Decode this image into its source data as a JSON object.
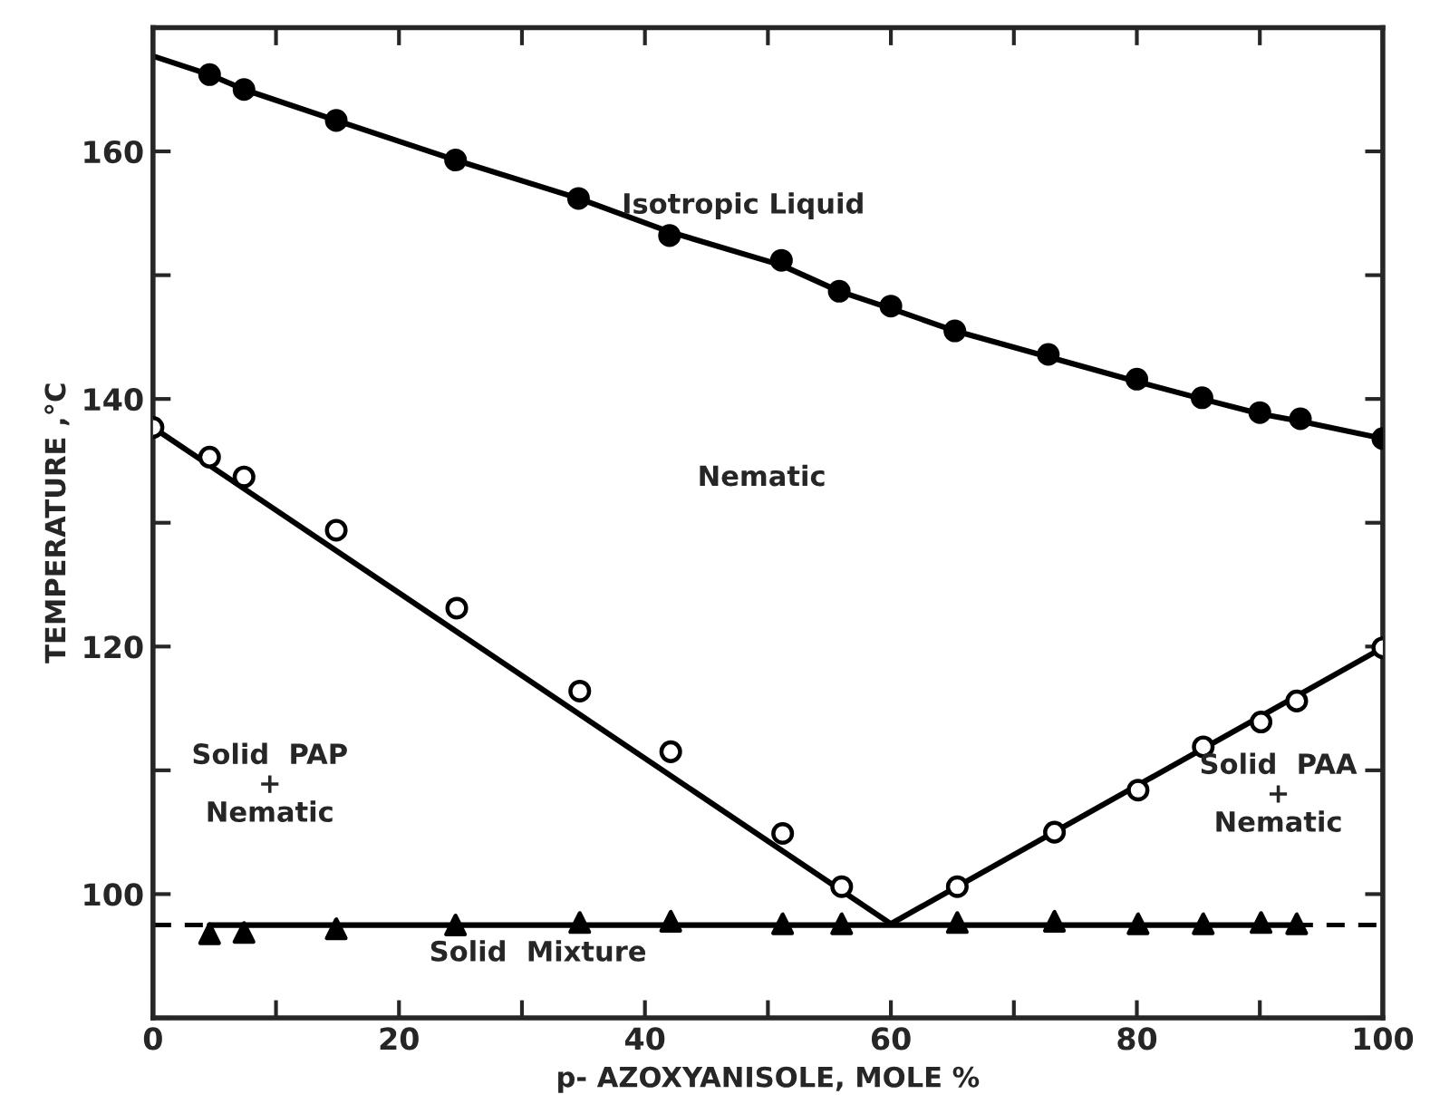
{
  "chart_data": {
    "type": "scatter",
    "xlabel": "p- AZOXYANISOLE, MOLE %",
    "ylabel": "TEMPERATURE ,°C",
    "xlim": [
      0,
      100
    ],
    "ylim": [
      90,
      170
    ],
    "xticks": [
      0,
      {
        "value": 10,
        "label": null
      },
      20,
      {
        "value": 30,
        "label": null
      },
      40,
      {
        "value": 50,
        "label": null
      },
      60,
      {
        "value": 70,
        "label": null
      },
      80,
      {
        "value": 90,
        "label": null
      },
      100
    ],
    "yticks": [
      {
        "value": 90,
        "label": null
      },
      100,
      {
        "value": 110,
        "label": null
      },
      120,
      {
        "value": 130,
        "label": null
      },
      140,
      {
        "value": 150,
        "label": null
      },
      160,
      {
        "value": 170,
        "label": null
      }
    ],
    "grid": false,
    "legend": false,
    "series": [
      {
        "type": "line",
        "color": "#000000",
        "marker": "none",
        "line_style": "solid",
        "x": [
          0,
          4.6,
          7.4,
          14.9,
          24.6,
          34.6,
          42,
          51.1,
          55.8,
          60,
          65.2,
          72.8,
          80,
          85.3,
          90,
          93.3,
          100
        ],
        "values": [
          167.7,
          166.2,
          165.0,
          162.5,
          159.3,
          156.2,
          153.5,
          150.8,
          148.7,
          147.3,
          145.5,
          143.4,
          141.4,
          140.0,
          138.8,
          138.2,
          136.8
        ]
      },
      {
        "type": "line",
        "color": "#000000",
        "marker": "none",
        "line_style": "solid",
        "x": [
          0,
          60,
          100
        ],
        "values": [
          137.7,
          97.6,
          119.9
        ]
      },
      {
        "type": "line",
        "color": "#000000",
        "marker": "none",
        "line_style": "solid",
        "x": [
          4.6,
          93.3
        ],
        "values": [
          97.5,
          97.5
        ]
      },
      {
        "color": "#000000",
        "marker": "circle",
        "x": [
          4.6,
          7.4,
          14.9,
          24.6,
          34.6,
          42,
          51.1,
          55.8,
          60,
          65.2,
          72.8,
          80,
          85.3,
          90,
          93.3,
          100
        ],
        "values": [
          166.2,
          165.0,
          162.5,
          159.3,
          156.2,
          153.2,
          151.2,
          148.7,
          147.5,
          145.5,
          143.6,
          141.6,
          140.1,
          138.9,
          138.4,
          136.8
        ]
      },
      {
        "color": "#ffffff",
        "marker": "circle",
        "x": [
          0,
          4.6,
          7.4,
          14.9,
          24.7,
          34.7,
          42.1,
          51.2,
          56,
          65.4,
          73.3,
          80.1,
          85.4,
          90.1,
          93,
          100
        ],
        "values": [
          137.7,
          135.3,
          133.7,
          129.4,
          123.1,
          116.4,
          111.5,
          104.9,
          100.6,
          100.6,
          105.0,
          108.4,
          111.9,
          113.9,
          115.6,
          119.9
        ]
      },
      {
        "color": "#000000",
        "marker": "triangle",
        "x": [
          4.6,
          7.4,
          14.9,
          24.6,
          34.7,
          42.1,
          51.2,
          56,
          65.4,
          73.3,
          80.1,
          85.4,
          90.1,
          93
        ],
        "values": [
          96.8,
          96.9,
          97.2,
          97.5,
          97.7,
          97.8,
          97.6,
          97.6,
          97.7,
          97.8,
          97.6,
          97.6,
          97.7,
          97.6
        ]
      }
    ],
    "ref_lines": [
      {
        "axis": "y",
        "value": 97.5,
        "label": null,
        "color": "#000000",
        "line_style": "dashed"
      }
    ],
    "annotations": [
      "Isotropic Liquid",
      "Nematic",
      "Solid  PAP\n+\nNematic",
      "Solid  PAA\n+\nNematic",
      "Solid  Mixture"
    ]
  }
}
